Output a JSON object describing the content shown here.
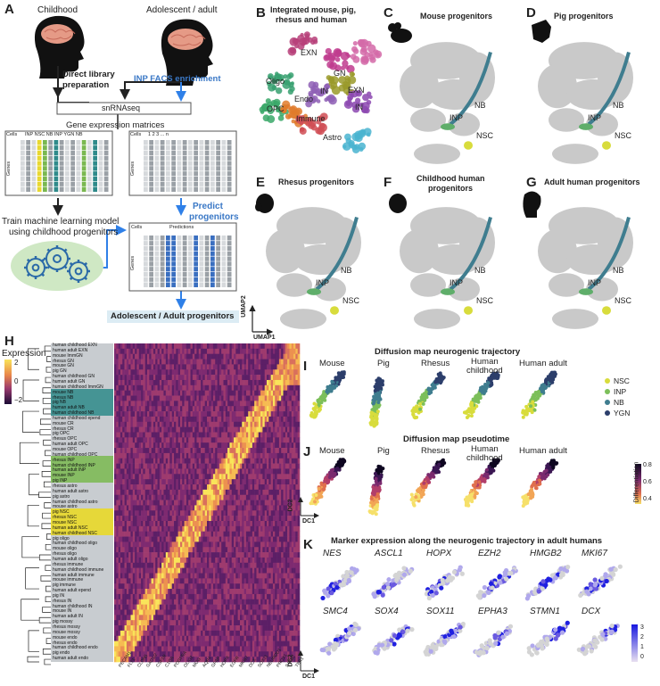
{
  "panels": {
    "A": "A",
    "B": "B",
    "C": "C",
    "D": "D",
    "E": "E",
    "F": "F",
    "G": "G",
    "H": "H",
    "I": "I",
    "J": "J",
    "K": "K"
  },
  "panelA": {
    "childhood": "Childhood",
    "adolescent": "Adolescent / adult",
    "direct": "Direct library",
    "direct2": "preparation",
    "facs": "INP FACS enrichment",
    "snrnaseq": "snRNAseq",
    "gem": "Gene expression matrices",
    "cells": "Cells",
    "genes": "Genes",
    "m1cols": "INP NSC  NB     INP YGN  NB",
    "m2cols": "1  2  3         ...         n",
    "train1": "Train machine learning model",
    "train2": "using childhood progenitors",
    "predict1": "Predict",
    "predict2": "progenitors",
    "predictions": "Predictions",
    "result": "Adolescent / Adult progenitors"
  },
  "panelB": {
    "title1": "Integrated mouse, pig,",
    "title2": "rhesus and human",
    "labels": [
      "EXN",
      "Oligo",
      "OPC",
      "Endo",
      "IN",
      "GN",
      "EXN",
      "IN",
      "Immune",
      "Astro"
    ]
  },
  "panelC": {
    "title": "Mouse progenitors",
    "labels": [
      "NB",
      "INP",
      "NSC"
    ]
  },
  "panelD": {
    "title": "Pig progenitors",
    "labels": [
      "NB",
      "INP",
      "NSC"
    ]
  },
  "panelE": {
    "title": "Rhesus progenitors",
    "labels": [
      "NB",
      "INP",
      "NSC"
    ]
  },
  "panelF": {
    "title1": "Childhood human",
    "title2": "progenitors",
    "labels": [
      "NB",
      "INP",
      "NSC"
    ]
  },
  "panelG": {
    "title": "Adult human progenitors",
    "labels": [
      "NB",
      "INP",
      "NSC"
    ]
  },
  "umap": {
    "y": "UMAP2",
    "x": "UMAP1"
  },
  "panelH": {
    "legend_title": "Expression",
    "legend_ticks": [
      "2",
      "0",
      "−2"
    ],
    "rows": [
      "human childhood EXN",
      "human adult EXN",
      "mouse ImmGN",
      "rhesus GN",
      "mouse GN",
      "pig GN",
      "human childhood GN",
      "human adult GN",
      "human childhood ImmGN",
      "mouse NB",
      "rhesus NB",
      "pig NB",
      "human adult NB",
      "human childhood NB",
      "human childhood epend",
      "mouse CR",
      "rhesus CR",
      "pig OPC",
      "rhesus OPC",
      "human adult OPC",
      "mouse OPC",
      "human childhood OPC",
      "rhesus INP",
      "human childhood INP",
      "human adult INP",
      "mouse INP",
      "pig INP",
      "rhesus astro",
      "human adult astro",
      "pig astro",
      "human childhood astro",
      "mouse astro",
      "pig NSC",
      "rhesus NSC",
      "mouse NSC",
      "human adult NSC",
      "human childhood NSC",
      "pig oligo",
      "human childhood oligo",
      "mouse oligo",
      "rhesus oligo",
      "human adult oligo",
      "rhesus immune",
      "human childhood immune",
      "human adult immune",
      "mouse immune",
      "pig immune",
      "human adult epend",
      "pig IN",
      "rhesus IN",
      "human childhood IN",
      "mouse IN",
      "human adult IN",
      "pig mossy",
      "rhesus mossy",
      "mouse mossy",
      "mouse endo",
      "rhesus endo",
      "human childhood endo",
      "pig endo",
      "human adult endo"
    ],
    "genes": [
      "PECAM1",
      "FLT1",
      "CLDN5",
      "GAD1/2",
      "CSF1R",
      "C1QA",
      "PDGFRA",
      "OLIG2",
      "MOG",
      "AQP4",
      "GFAP",
      "HOPX",
      "EGFR",
      "MKI67",
      "DCX",
      "SOX11",
      "NEUROD1",
      "PROX1",
      "SATB2",
      "TBR1"
    ]
  },
  "panelI": {
    "title": "Diffusion map neurogenic trajectory",
    "species": [
      "Mouse",
      "Pig",
      "Rhesus",
      "Human\nchildhood",
      "Human adult"
    ],
    "legend": [
      {
        "label": "NSC",
        "color": "#d8dc3c"
      },
      {
        "label": "INP",
        "color": "#7cbf5a"
      },
      {
        "label": "NB",
        "color": "#3f7d8f"
      },
      {
        "label": "YGN",
        "color": "#2c3e6b"
      }
    ]
  },
  "panelJ": {
    "title": "Diffusion map pseudotime",
    "species": [
      "Mouse",
      "Pig",
      "Rhesus",
      "Human\nchildhood",
      "Human adult"
    ],
    "legend_title": "Differentiation",
    "legend_ticks": [
      "0.8",
      "0.6",
      "0.4"
    ],
    "dc2": "DC2",
    "dc1": "DC1"
  },
  "panelK": {
    "title": "Marker expression along the neurogenic trajectory in adult humans",
    "genes_row1": [
      "NES",
      "ASCL1",
      "HOPX",
      "EZH2",
      "HMGB2",
      "MKI67"
    ],
    "genes_row2": [
      "SMC4",
      "SOX4",
      "SOX11",
      "EPHA3",
      "STMN1",
      "DCX"
    ],
    "legend_ticks": [
      "3",
      "2",
      "1",
      "0"
    ],
    "dc2": "DC2",
    "dc1": "DC1"
  }
}
